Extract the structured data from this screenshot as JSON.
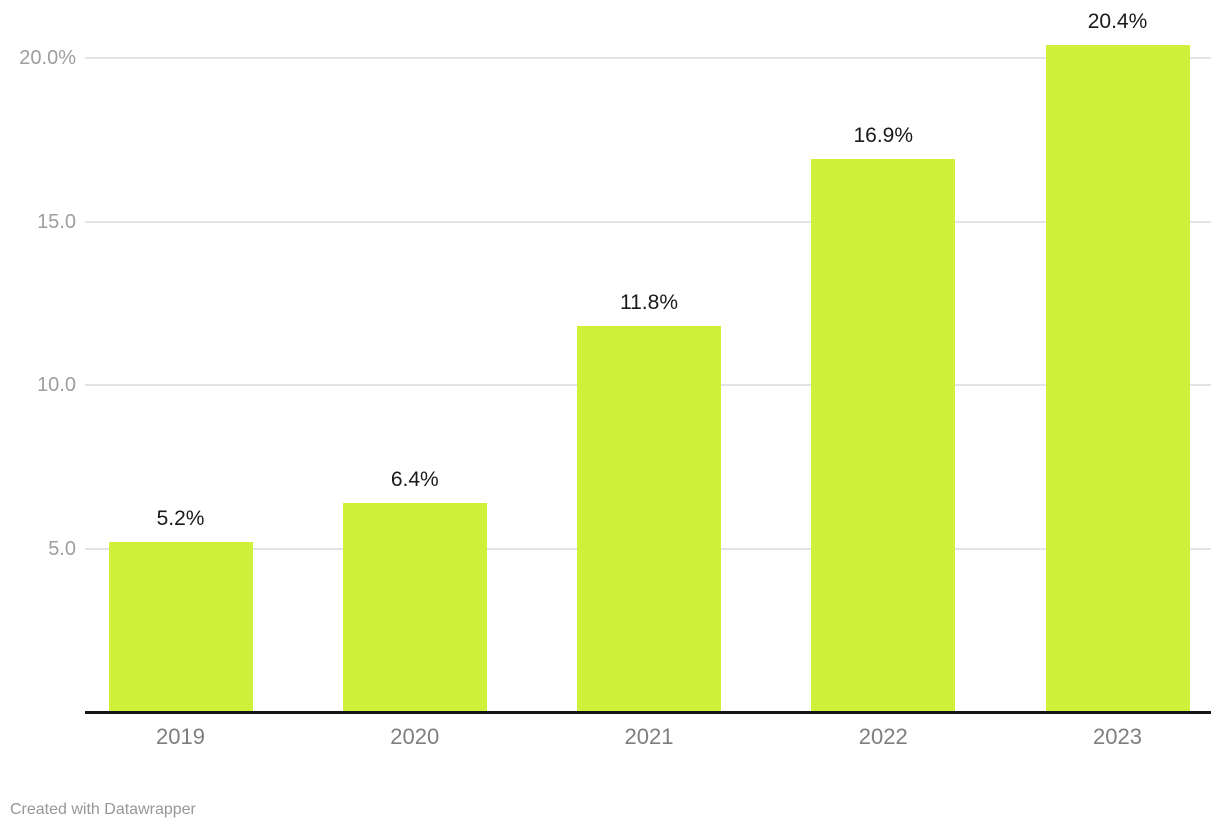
{
  "chart_data": {
    "type": "bar",
    "categories": [
      "2019",
      "2020",
      "2021",
      "2022",
      "2023"
    ],
    "values": [
      5.2,
      6.4,
      11.8,
      16.9,
      20.4
    ],
    "value_labels": [
      "5.2%",
      "6.4%",
      "11.8%",
      "16.9%",
      "20.4%"
    ],
    "title": "",
    "xlabel": "",
    "ylabel": "",
    "ylim": [
      0,
      21
    ],
    "yticks": [
      {
        "value": 5,
        "label": "5.0"
      },
      {
        "value": 10,
        "label": "10.0"
      },
      {
        "value": 15,
        "label": "15.0"
      },
      {
        "value": 20,
        "label": "20.0%"
      }
    ],
    "grid": true,
    "legend": "none",
    "bar_color": "#d0f13c"
  },
  "colors": {
    "bar": "#d0f13c",
    "gridline": "#e4e4e4",
    "baseline": "#161616",
    "y_tick_text": "#9e9e9e",
    "x_tick_text": "#7e7e7e",
    "value_text": "#1a1a1a",
    "footer_text": "#979797",
    "background": "#ffffff"
  },
  "footer": {
    "attribution": "Created with Datawrapper"
  }
}
